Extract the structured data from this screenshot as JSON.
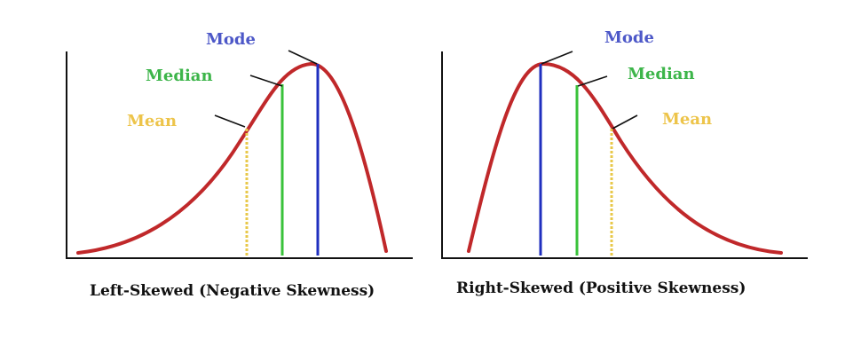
{
  "colors": {
    "curve": "#c0282a",
    "mode": "#1f2fbf",
    "median": "#39c23a",
    "mean": "#e8c84a",
    "mode_text": "#4d58c8",
    "median_text": "#3db54a",
    "mean_text": "#edc44a",
    "axis": "#111111"
  },
  "panels": [
    {
      "id": "left",
      "caption": "Left-Skewed (Negative Skewness)",
      "labels": {
        "mode": "Mode",
        "median": "Median",
        "mean": "Mean"
      }
    },
    {
      "id": "right",
      "caption": "Right-Skewed (Positive Skewness)",
      "labels": {
        "mode": "Mode",
        "median": "Median",
        "mean": "Mean"
      }
    }
  ]
}
